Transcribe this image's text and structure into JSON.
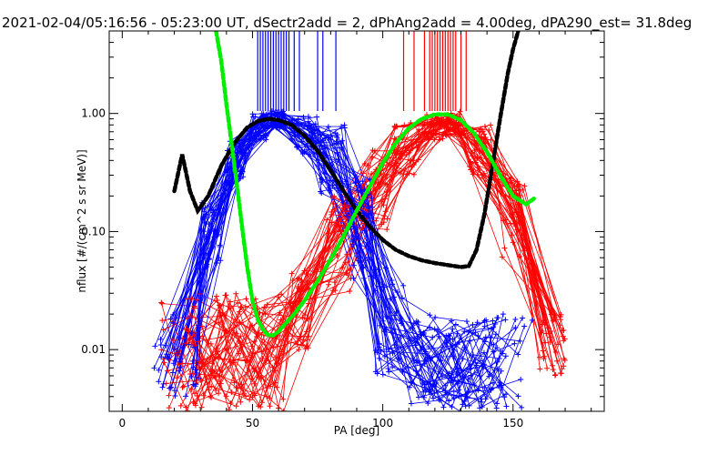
{
  "chart_data": {
    "type": "line",
    "title": "2021-02-04/05:16:56 - 05:23:00 UT, dSectr2add = 2, dPhAng2add = 4.00deg, dPA290_est=  31.8deg",
    "xlabel": "PA [deg]",
    "ylabel": "nflux [#/(cm^2 s sr MeV)]",
    "xlim": [
      -5,
      185
    ],
    "ylim": [
      0.003,
      5.0
    ],
    "yscale": "log",
    "xticks": [
      0,
      50,
      100,
      150
    ],
    "yticks": [
      0.01,
      0.1,
      1.0
    ],
    "ytick_labels": [
      "0.01",
      "0.10",
      "1.00"
    ],
    "grid": false,
    "colors": {
      "blue_group": "#0000ff",
      "red_group": "#ff0000",
      "black_fit": "#000000",
      "green_fit": "#00ee00"
    },
    "blue_band": {
      "name": "",
      "left_tail_pa": [
        12,
        30
      ],
      "left_tail_flux": [
        0.004,
        0.02
      ],
      "peak_pa": 57,
      "peak_flux": 0.92,
      "right_edge_pa": [
        95,
        110
      ],
      "floor_pa": [
        110,
        165
      ],
      "floor_flux": [
        0.003,
        0.02
      ],
      "n_traces": 45,
      "marker": "+"
    },
    "red_band": {
      "name": "",
      "floor_pa": [
        15,
        65
      ],
      "floor_flux": [
        0.003,
        0.03
      ],
      "rise_pa": [
        65,
        100
      ],
      "peak_pa": 124,
      "peak_flux": 0.95,
      "right_tail_pa": [
        160,
        170
      ],
      "right_tail_flux": [
        0.006,
        0.02
      ],
      "n_traces": 45,
      "marker": "+"
    },
    "black_curve": {
      "x": [
        20,
        23,
        26,
        29,
        33,
        38,
        43,
        48,
        52,
        56,
        60,
        65,
        70,
        75,
        80,
        85,
        90,
        95,
        100,
        105,
        110,
        115,
        120,
        125,
        130,
        133,
        136,
        139,
        142,
        145,
        148,
        150,
        152
      ],
      "y": [
        0.22,
        0.45,
        0.22,
        0.15,
        0.2,
        0.36,
        0.56,
        0.76,
        0.86,
        0.9,
        0.88,
        0.8,
        0.65,
        0.48,
        0.33,
        0.22,
        0.15,
        0.11,
        0.085,
        0.07,
        0.062,
        0.057,
        0.054,
        0.052,
        0.05,
        0.051,
        0.07,
        0.14,
        0.35,
        0.9,
        2.2,
        3.5,
        5.0
      ]
    },
    "green_curve": {
      "x": [
        36,
        38,
        40,
        42,
        44,
        46,
        48,
        50,
        52,
        54,
        56,
        58,
        60,
        62,
        66,
        70,
        75,
        80,
        85,
        90,
        95,
        100,
        105,
        110,
        115,
        120,
        125,
        130,
        135,
        140,
        145,
        150,
        155,
        158
      ],
      "y": [
        5.0,
        2.8,
        1.2,
        0.55,
        0.25,
        0.11,
        0.05,
        0.026,
        0.018,
        0.0148,
        0.0132,
        0.0132,
        0.0142,
        0.016,
        0.02,
        0.026,
        0.038,
        0.058,
        0.092,
        0.15,
        0.24,
        0.38,
        0.56,
        0.75,
        0.9,
        0.98,
        0.98,
        0.88,
        0.68,
        0.47,
        0.3,
        0.2,
        0.17,
        0.19
      ]
    },
    "blue_tick_marks_pa": [
      52,
      53,
      54,
      55,
      56,
      57,
      58,
      59,
      60,
      61,
      62,
      63,
      64,
      66,
      68,
      75,
      77,
      82
    ],
    "red_tick_marks_pa": [
      108,
      112,
      116,
      118,
      119,
      120,
      121,
      122,
      123,
      124,
      125,
      126,
      127,
      128,
      130,
      132
    ]
  }
}
